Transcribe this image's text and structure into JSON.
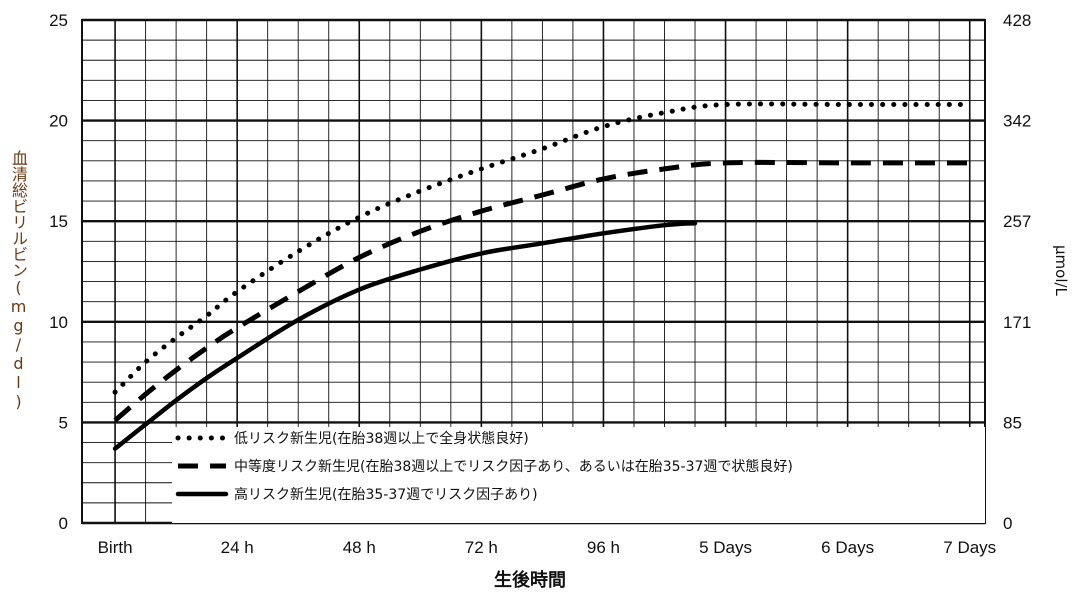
{
  "chart_data": {
    "type": "line",
    "title": "",
    "xlabel": "生後時間",
    "ylabel_left": "血清総ビリルビン(mg/dl)",
    "ylabel_right": "μmol/L",
    "x_ticks": [
      "Birth",
      "24 h",
      "48 h",
      "72 h",
      "96 h",
      "5 Days",
      "6 Days",
      "7 Days"
    ],
    "x_tick_hours": [
      0,
      24,
      48,
      72,
      96,
      120,
      144,
      168
    ],
    "y_ticks_left": [
      0,
      5,
      10,
      15,
      20,
      25
    ],
    "y_ticks_right": [
      {
        "label": "0",
        "mg_dl": 0
      },
      {
        "label": "85",
        "mg_dl": 5
      },
      {
        "label": "171",
        "mg_dl": 10
      },
      {
        "label": "257",
        "mg_dl": 15
      },
      {
        "label": "342",
        "mg_dl": 20
      },
      {
        "label": "428",
        "mg_dl": 25
      }
    ],
    "xlim": [
      -6.5,
      171
    ],
    "ylim": [
      0,
      25
    ],
    "grid": true,
    "legend_position": "bottom",
    "series": [
      {
        "name": "低リスク新生児(在胎38週以上で全身状態良好)",
        "style": "dotted",
        "x": [
          0,
          6,
          12,
          18,
          24,
          36,
          48,
          60,
          72,
          84,
          96,
          108,
          120,
          144,
          168
        ],
        "y": [
          6.5,
          8.0,
          9.2,
          10.3,
          11.5,
          13.5,
          15.2,
          16.5,
          17.6,
          18.6,
          19.7,
          20.4,
          20.8,
          20.8,
          20.8
        ]
      },
      {
        "name": "中等度リスク新生児(在胎38週以上でリスク因子あり、あるいは在胎35-37週で状態良好)",
        "style": "dashed",
        "x": [
          0,
          6,
          12,
          18,
          24,
          36,
          48,
          60,
          72,
          84,
          96,
          108,
          120,
          144,
          168
        ],
        "y": [
          5.1,
          6.4,
          7.6,
          8.7,
          9.7,
          11.5,
          13.2,
          14.5,
          15.5,
          16.3,
          17.1,
          17.6,
          17.9,
          17.9,
          17.9
        ]
      },
      {
        "name": "高リスク新生児(在胎35-37週でリスク因子あり)",
        "style": "solid",
        "x": [
          0,
          6,
          12,
          18,
          24,
          36,
          48,
          60,
          72,
          84,
          96,
          108,
          114
        ],
        "y": [
          3.7,
          4.9,
          6.1,
          7.2,
          8.2,
          10.1,
          11.6,
          12.6,
          13.4,
          13.9,
          14.4,
          14.8,
          14.9
        ]
      }
    ]
  }
}
